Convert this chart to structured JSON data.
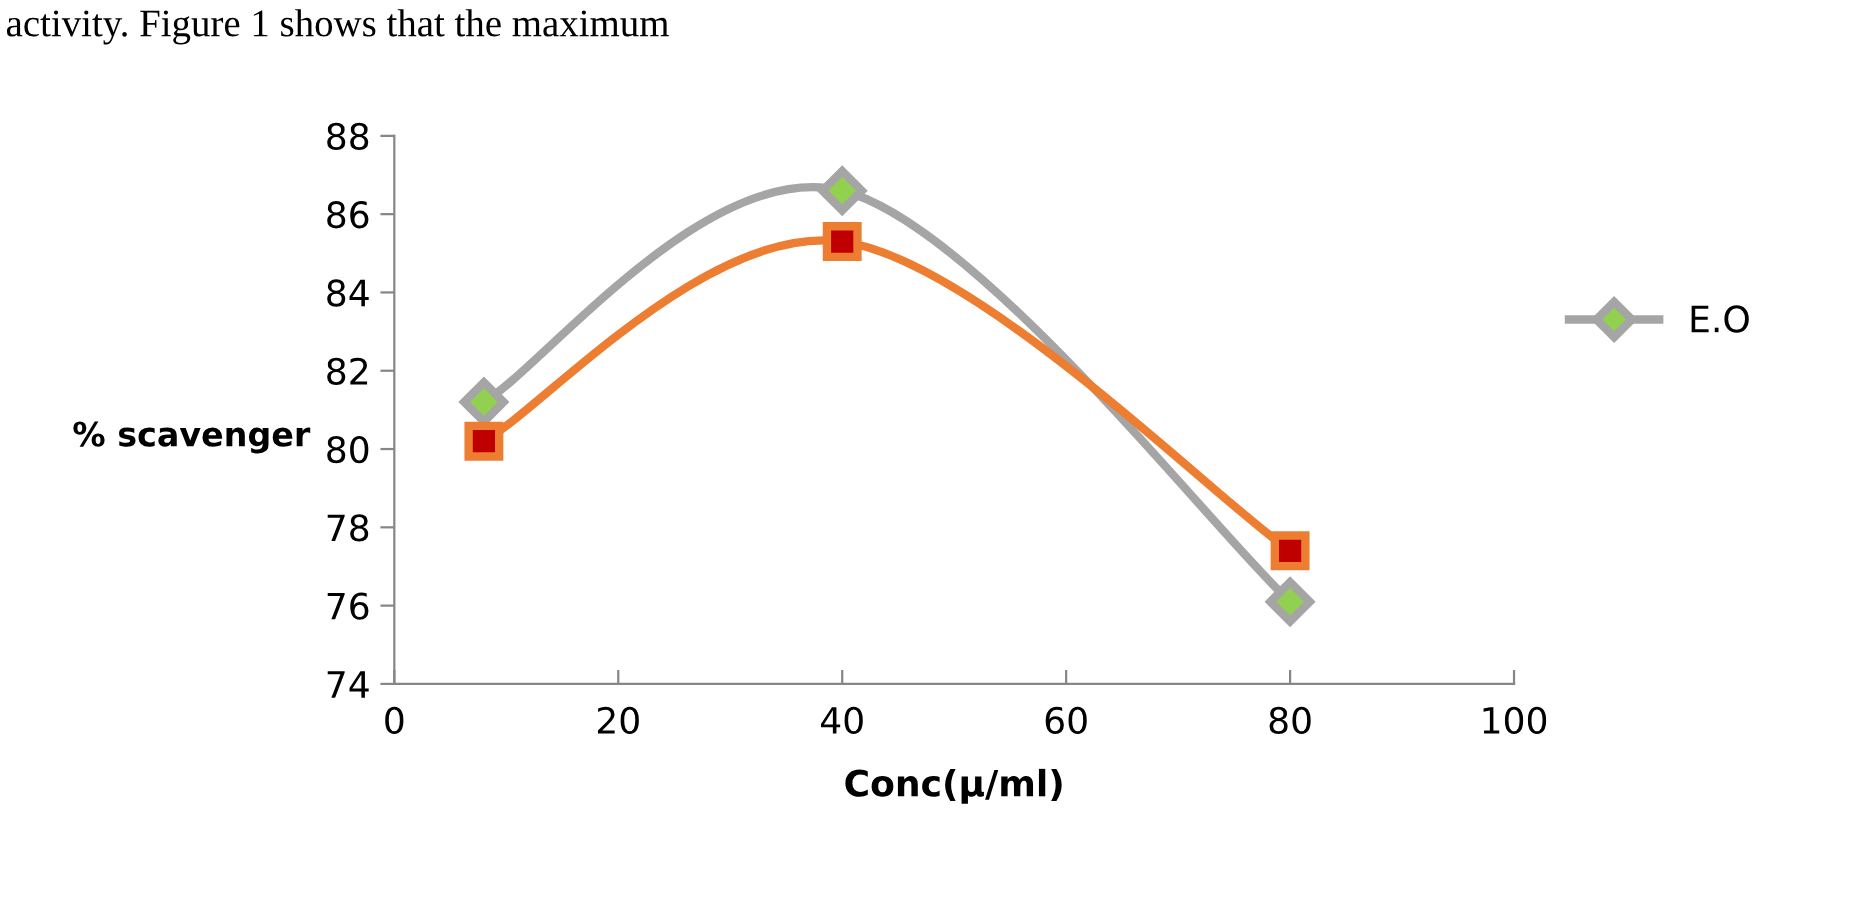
{
  "chart_data": {
    "type": "line",
    "xlabel": "Conc(μ/ml)",
    "ylabel": "% scavenger",
    "annotations": [
      "activity. Figure 1 shows that the maximum"
    ],
    "x": [
      8,
      40,
      80
    ],
    "series": [
      {
        "name": "E.O",
        "color": "#a5a5a5",
        "marker": "diamond",
        "values": [
          81.2,
          86.6,
          76.1
        ]
      },
      {
        "color": "#ed7d31",
        "marker": "square",
        "values": [
          80.2,
          85.3,
          77.4
        ]
      }
    ],
    "xlim": [
      0,
      100
    ],
    "xticks": [
      0,
      20,
      40,
      60,
      80,
      100
    ],
    "ylim": [
      74,
      88
    ],
    "yticks": [
      74,
      76,
      78,
      80,
      82,
      84,
      86,
      88
    ],
    "grid": false,
    "legend": "right",
    "line_style": "solid"
  }
}
